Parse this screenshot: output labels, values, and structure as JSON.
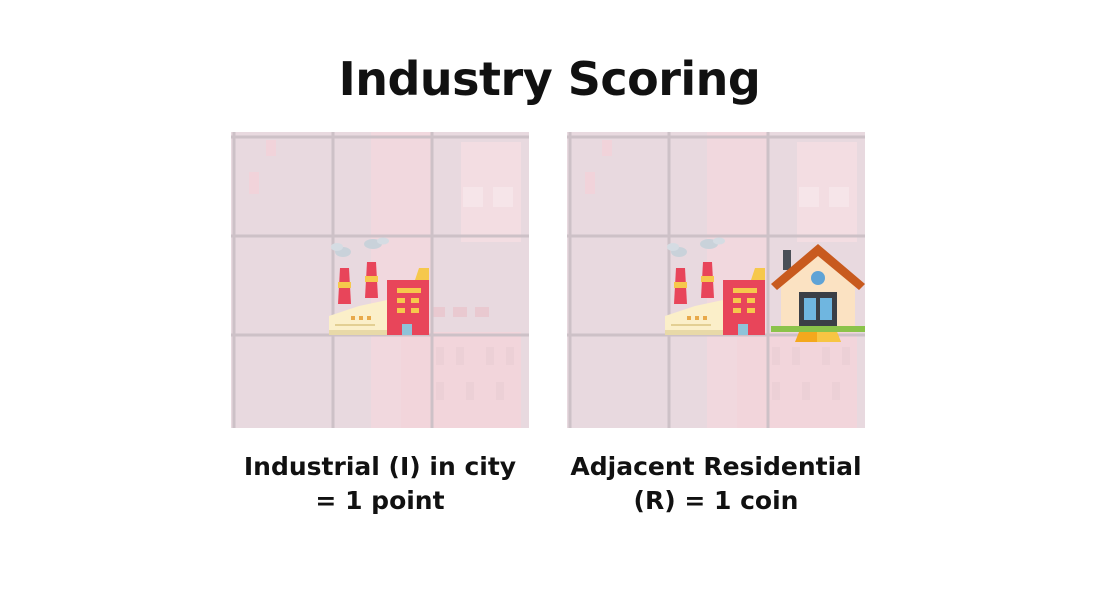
{
  "title": "Industry Scoring",
  "panels": [
    {
      "caption_line1": "Industrial (I) in city",
      "caption_line2": "= 1 point",
      "tiles": [
        "factory-icon"
      ]
    },
    {
      "caption_line1": "Adjacent Residential",
      "caption_line2": "(R) = 1 coin",
      "tiles": [
        "factory-icon",
        "house-icon"
      ]
    }
  ],
  "colors": {
    "grid_bg": "#e8d9df",
    "grid_line": "#cfc3c8",
    "building_tint": "#f5dbe0",
    "factory_red": "#e8455a",
    "factory_cream": "#fbefc9",
    "smoke": "#c9d2da",
    "roof": "#c85a1e",
    "wall": "#fbe2c2",
    "window": "#5fa3d6",
    "lawn": "#8bc34a"
  }
}
